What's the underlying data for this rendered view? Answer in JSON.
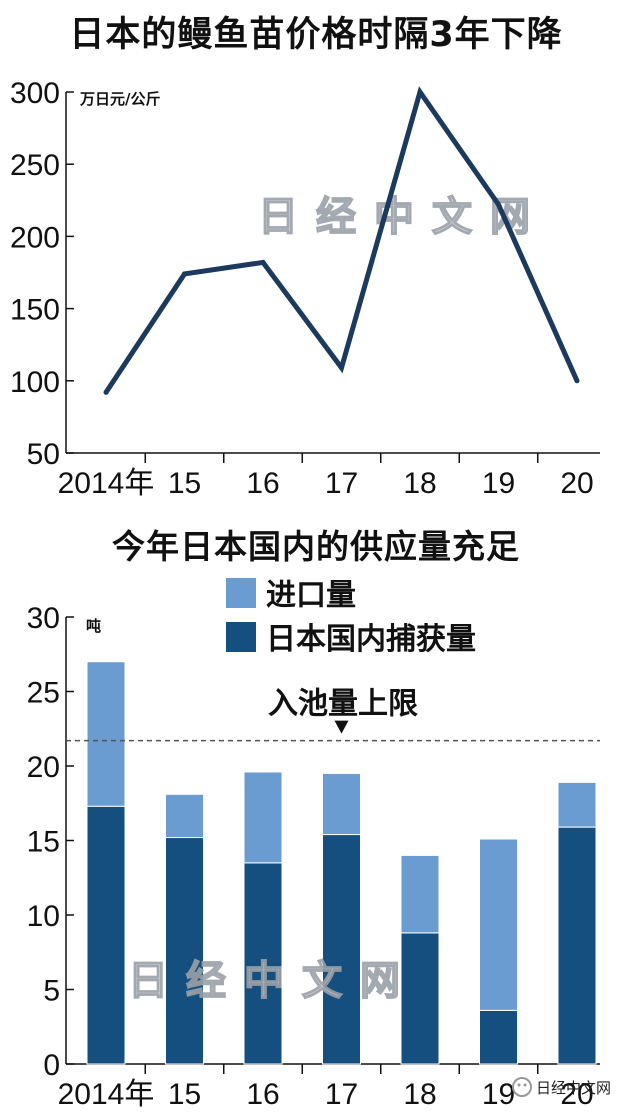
{
  "chart_data": [
    {
      "type": "line",
      "title": "日本的鳗鱼苗价格时隔3年下降",
      "ylabel": "万日元/公斤",
      "categories": [
        "2014年",
        "15",
        "16",
        "17",
        "18",
        "19",
        "20"
      ],
      "series": [
        {
          "values": [
            92,
            174,
            182,
            109,
            300,
            222,
            100
          ]
        }
      ],
      "ylim": [
        50,
        300
      ],
      "yticks": [
        50,
        100,
        150,
        200,
        250,
        300
      ],
      "line_color": "#1b3a5e"
    },
    {
      "type": "bar",
      "stacked": true,
      "title": "今年日本国内的供应量充足",
      "ylabel": "吨",
      "categories": [
        "2014年",
        "15",
        "16",
        "17",
        "18",
        "19",
        "20"
      ],
      "series": [
        {
          "name": "日本国内捕获量",
          "color": "#154f7f",
          "values": [
            17.3,
            15.2,
            13.5,
            15.4,
            8.8,
            3.6,
            15.9
          ]
        },
        {
          "name": "进口量",
          "color": "#6a9cd1",
          "values": [
            9.7,
            2.9,
            6.1,
            4.1,
            5.2,
            11.5,
            3.0
          ]
        }
      ],
      "ylim": [
        0,
        30
      ],
      "yticks": [
        0,
        5,
        10,
        15,
        20,
        25,
        30
      ],
      "reference_line": {
        "label": "入池量上限",
        "value": 21.7
      },
      "legend_order": [
        "进口量",
        "日本国内捕获量"
      ]
    }
  ],
  "watermark": "日经中文网",
  "brand": "日经中文网"
}
